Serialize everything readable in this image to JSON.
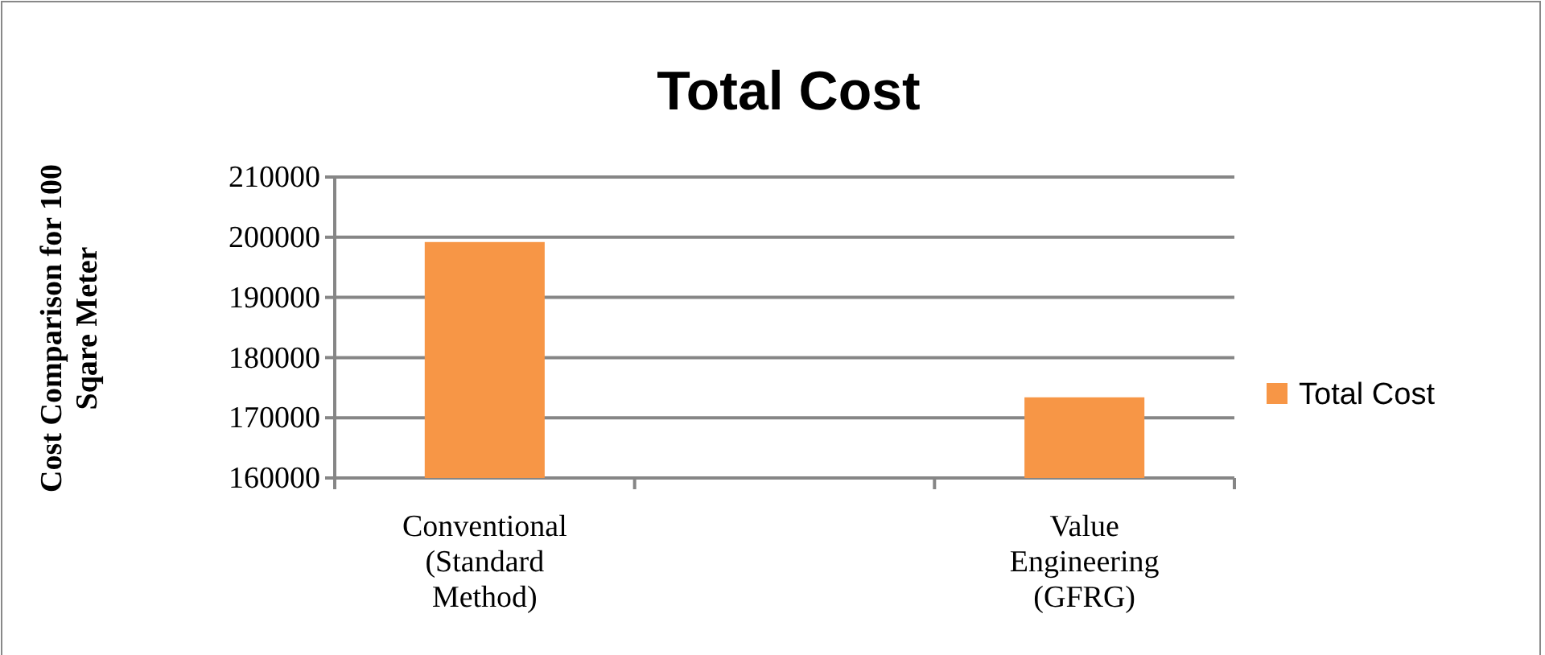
{
  "chart_data": {
    "type": "bar",
    "title": "Total Cost",
    "ylabel": "Cost Comparison for 100 Sqare Meter",
    "categories": [
      "Conventional (Standard Method)",
      null,
      "Value Engineering (GFRG)"
    ],
    "series": [
      {
        "name": "Total Cost",
        "color": "#f79646",
        "values": [
          199200,
          null,
          173400
        ]
      }
    ],
    "ylim": [
      160000,
      210000
    ],
    "yticks": [
      160000,
      170000,
      180000,
      190000,
      200000,
      210000
    ],
    "grid": "y",
    "legend": "right"
  }
}
